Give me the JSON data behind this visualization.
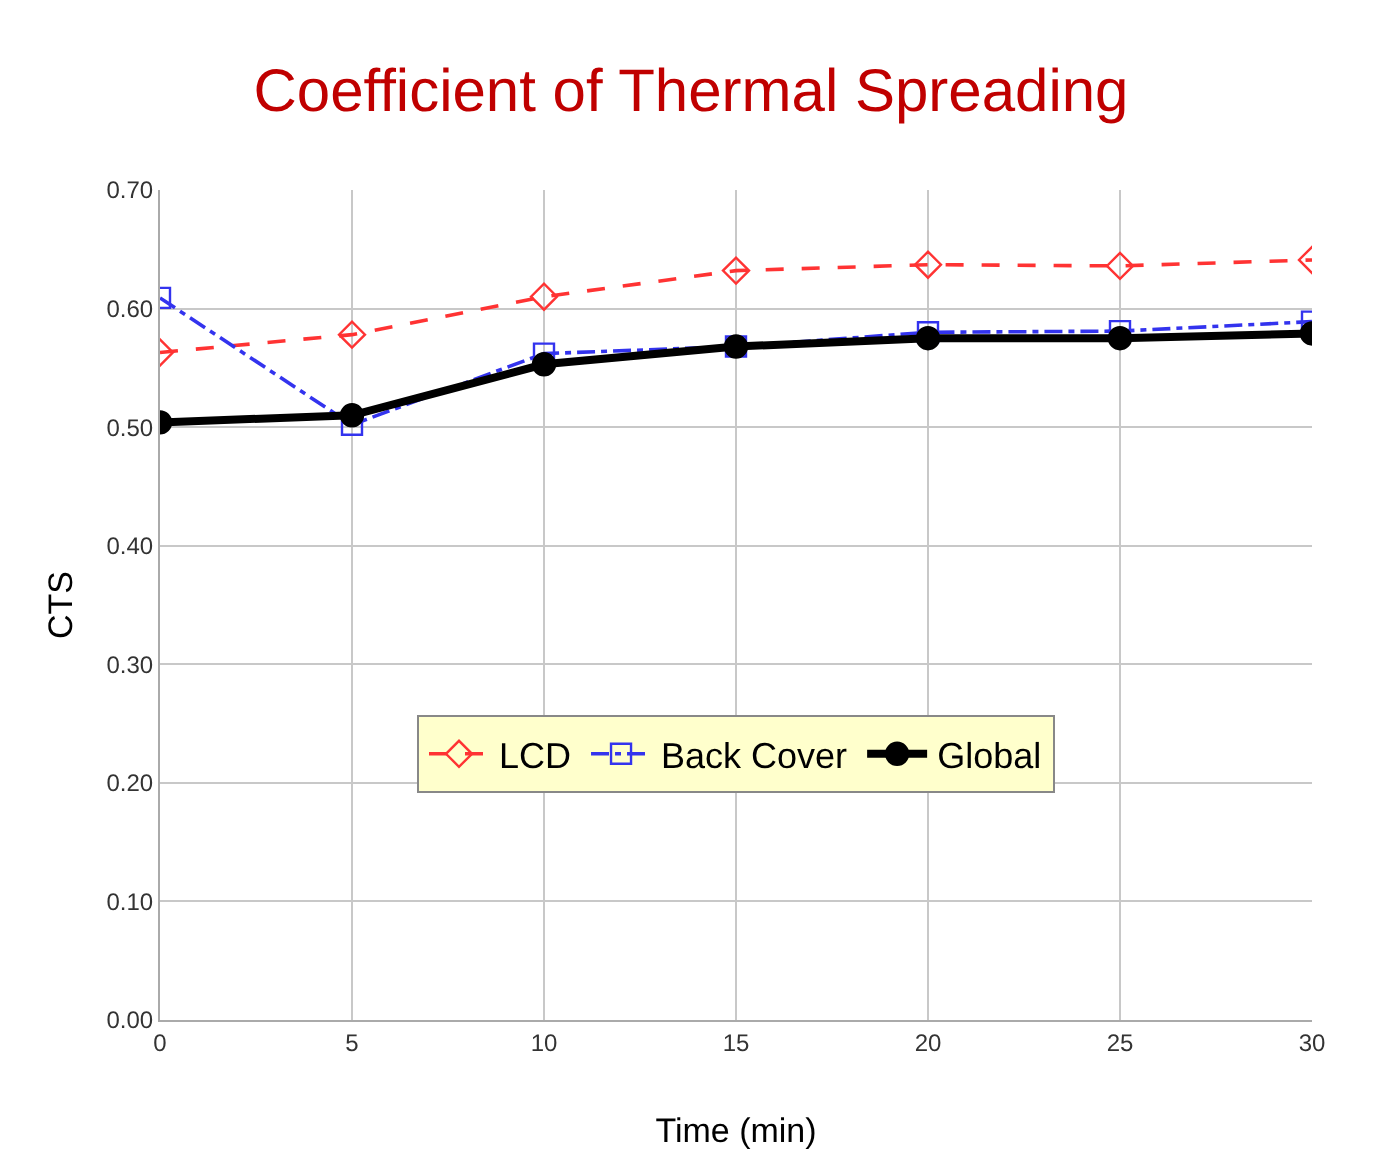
{
  "chart_data": {
    "type": "line",
    "title": "Coefficient of Thermal Spreading",
    "xlabel": "Time (min)",
    "ylabel": "CTS",
    "x": [
      0,
      5,
      10,
      15,
      20,
      25,
      30
    ],
    "series": [
      {
        "name": "LCD",
        "color": "#ff3333",
        "marker": "diamond",
        "line_style": "dashed",
        "values": [
          0.563,
          0.578,
          0.61,
          0.632,
          0.637,
          0.636,
          0.641
        ]
      },
      {
        "name": "Back Cover",
        "color": "#3333ee",
        "marker": "square",
        "line_style": "dashdot",
        "values": [
          0.609,
          0.502,
          0.562,
          0.568,
          0.58,
          0.581,
          0.589
        ]
      },
      {
        "name": "Global",
        "color": "#000000",
        "marker": "circle",
        "line_style": "solid",
        "values": [
          0.504,
          0.51,
          0.553,
          0.568,
          0.575,
          0.575,
          0.579
        ]
      }
    ],
    "xlim": [
      0,
      30
    ],
    "xticks": [
      0,
      5,
      10,
      15,
      20,
      25,
      30
    ],
    "ylim": [
      0,
      0.7
    ],
    "yticks": [
      {
        "value": 0,
        "label": "0.00"
      },
      {
        "value": 0.1,
        "label": "0.10"
      },
      {
        "value": 0.2,
        "label": "0.20"
      },
      {
        "value": 0.3,
        "label": "0.30"
      },
      {
        "value": 0.4,
        "label": "0.40"
      },
      {
        "value": 0.5,
        "label": "0.50"
      },
      {
        "value": 0.6,
        "label": "0.60"
      },
      {
        "value": 0.7,
        "label": "0.70"
      }
    ],
    "grid": true,
    "legend": "center"
  }
}
